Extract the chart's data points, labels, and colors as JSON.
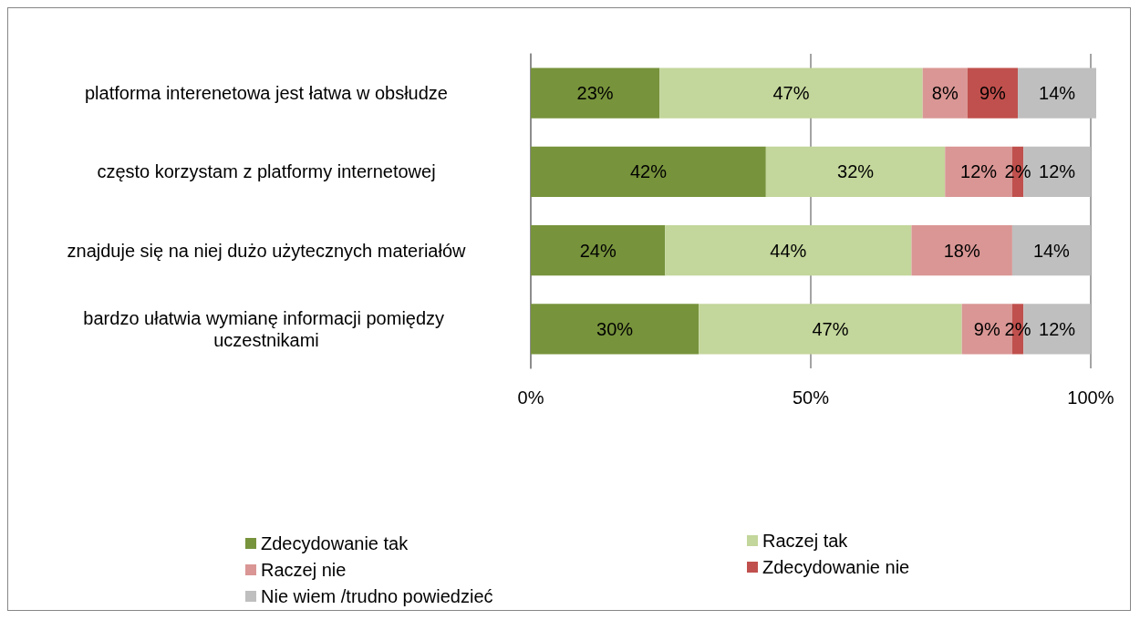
{
  "chart_data": {
    "type": "bar",
    "orientation": "horizontal",
    "stacked": true,
    "categories": [
      "platforma interenetowa jest łatwa w obsłudze",
      "często korzystam z platformy internetowej",
      "znajduje się na niej dużo użytecznych materiałów",
      "bardzo ułatwia wymianę informacji pomiędzy uczestnikami"
    ],
    "series": [
      {
        "name": "Zdecydowanie tak",
        "color": "#77933c",
        "values": [
          23,
          42,
          24,
          30
        ],
        "value_labels": [
          "23%",
          "42%",
          "24%",
          "30%"
        ]
      },
      {
        "name": "Raczej tak",
        "color": "#c3d69b",
        "values": [
          47,
          32,
          44,
          47
        ],
        "value_labels": [
          "47%",
          "32%",
          "44%",
          "47%"
        ]
      },
      {
        "name": "Raczej nie",
        "color": "#d99694",
        "values": [
          8,
          12,
          18,
          9
        ],
        "value_labels": [
          "8%",
          "12%",
          "18%",
          "9%"
        ]
      },
      {
        "name": "Zdecydowanie nie",
        "color": "#c0504d",
        "values": [
          9,
          2,
          null,
          2
        ],
        "value_labels": [
          "9%",
          "2%",
          null,
          "2%"
        ]
      },
      {
        "name": "Nie wiem /trudno powiedzieć",
        "color": "#bfbfbf",
        "values": [
          14,
          12,
          14,
          12
        ],
        "value_labels": [
          "14%",
          "12%",
          "14%",
          "12%"
        ]
      }
    ],
    "xlim": [
      0,
      101
    ],
    "xticks": [
      {
        "value": 0,
        "label": "0%"
      },
      {
        "value": 50,
        "label": "50%"
      },
      {
        "value": 100,
        "label": "100%"
      }
    ],
    "grid": "x",
    "legend": "bottom"
  }
}
